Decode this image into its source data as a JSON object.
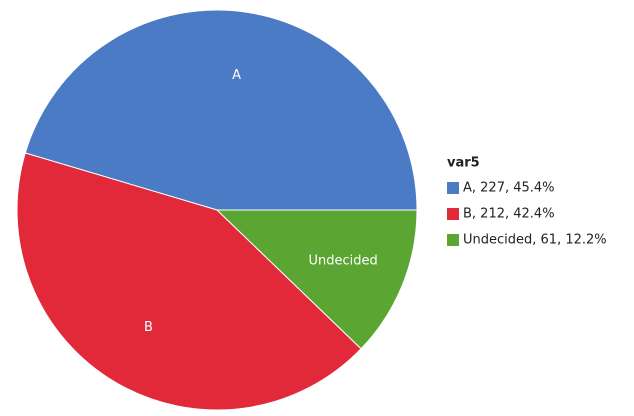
{
  "chart_data": {
    "type": "pie",
    "legend_title": "var5",
    "categories": [
      "A",
      "B",
      "Undecided"
    ],
    "values": [
      227,
      212,
      61
    ],
    "value_labels": [
      "A, 227, 45.4%",
      "B, 212, 42.4%",
      "Undecided, 61, 12.2%"
    ],
    "colors": [
      "#4a7bc4",
      "#e1293a",
      "#5ba632"
    ],
    "legend": "right"
  }
}
